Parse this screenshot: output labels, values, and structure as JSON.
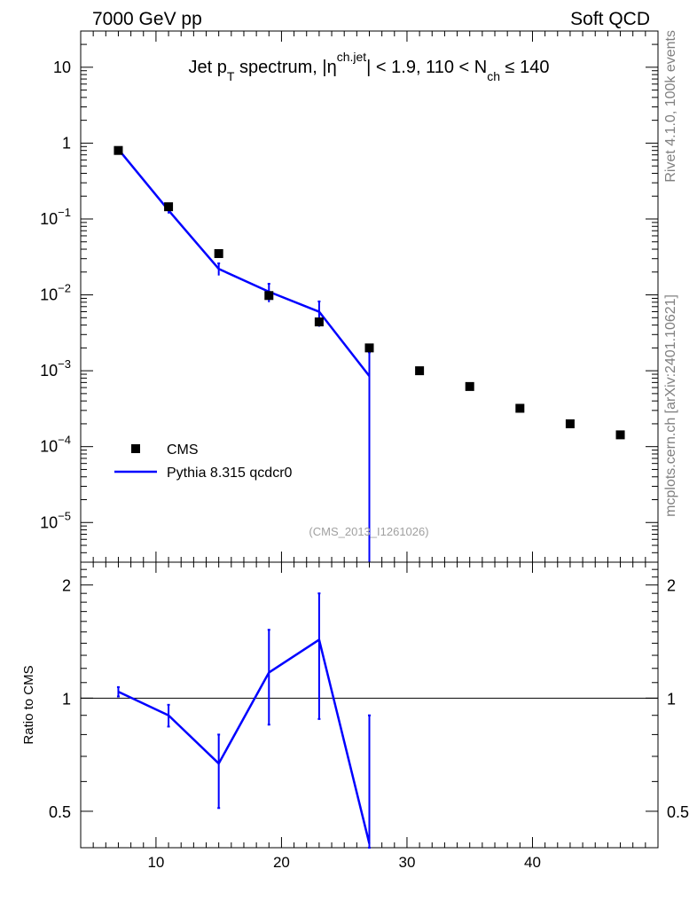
{
  "header": {
    "left": "7000 GeV pp",
    "right": "Soft QCD"
  },
  "side_text": {
    "top": "Rivet 4.1.0,  100k events",
    "bottom": "mcplots.cern.ch [arXiv:2401.10621]"
  },
  "analysis_label": "(CMS_2013_I1261026)",
  "chart_data": [
    {
      "type": "scatter",
      "panel": "main",
      "title_parts": {
        "a": "Jet p",
        "a_sub": "T",
        "b": " spectrum, |η",
        "b_sup": "ch.jet",
        "c": "| < 1.9, 110 < N",
        "c_sub": "ch",
        "d": " ≤ 140"
      },
      "xlim": [
        4,
        50
      ],
      "ylim": [
        3e-06,
        30
      ],
      "yscale": "log",
      "xticks": [
        10,
        20,
        30,
        40
      ],
      "yticks": [
        {
          "value": 10,
          "label": "10",
          "exp": ""
        },
        {
          "value": 1,
          "label": "1",
          "exp": ""
        },
        {
          "value": 0.1,
          "label": "10",
          "exp": "−1"
        },
        {
          "value": 0.01,
          "label": "10",
          "exp": "−2"
        },
        {
          "value": 0.001,
          "label": "10",
          "exp": "−3"
        },
        {
          "value": 0.0001,
          "label": "10",
          "exp": "−4"
        },
        {
          "value": 1e-05,
          "label": "10",
          "exp": "−5"
        }
      ],
      "legend": {
        "placement": "lower-left",
        "entries": [
          {
            "label": "CMS",
            "style": "marker",
            "color": "#000000"
          },
          {
            "label": "Pythia 8.315 qcdcr0",
            "style": "line",
            "color": "#0000ff"
          }
        ]
      },
      "series": [
        {
          "name": "CMS",
          "color": "#000000",
          "x": [
            7,
            11,
            15,
            19,
            23,
            27,
            31,
            35,
            39,
            43,
            47
          ],
          "y": [
            0.8,
            0.145,
            0.035,
            0.0098,
            0.0044,
            0.002,
            0.001,
            0.00062,
            0.00032,
            0.0002,
            0.000143
          ]
        },
        {
          "name": "Pythia 8.315 qcdcr0",
          "color": "#0000ff",
          "x": [
            7,
            11,
            15,
            19,
            23,
            27
          ],
          "y": [
            0.83,
            0.13,
            0.022,
            0.011,
            0.006,
            0.00085
          ],
          "err_lo": [
            0.035,
            0.012,
            0.004,
            0.003,
            0.0022,
            0.00085
          ],
          "err_hi": [
            0.035,
            0.012,
            0.004,
            0.003,
            0.0022,
            0.0009
          ]
        }
      ]
    },
    {
      "type": "line",
      "panel": "ratio",
      "ylabel": "Ratio to CMS",
      "xlim": [
        4,
        50
      ],
      "ylim": [
        0.4,
        2.3
      ],
      "yscale": "log",
      "xticks": [
        10,
        20,
        30,
        40
      ],
      "yticks": [
        {
          "value": 0.5,
          "label": "0.5"
        },
        {
          "value": 1,
          "label": "1"
        },
        {
          "value": 2,
          "label": "2"
        }
      ],
      "reference_line": 1,
      "series": [
        {
          "name": "Pythia 8.315 qcdcr0",
          "color": "#0000ff",
          "x": [
            7,
            11,
            15,
            19,
            23,
            27
          ],
          "y": [
            1.04,
            0.9,
            0.67,
            1.17,
            1.43,
            0.41
          ],
          "err_lo": [
            0.03,
            0.06,
            0.16,
            0.32,
            0.55,
            0.01
          ],
          "err_hi": [
            0.03,
            0.06,
            0.13,
            0.35,
            0.47,
            0.49
          ]
        }
      ]
    }
  ]
}
